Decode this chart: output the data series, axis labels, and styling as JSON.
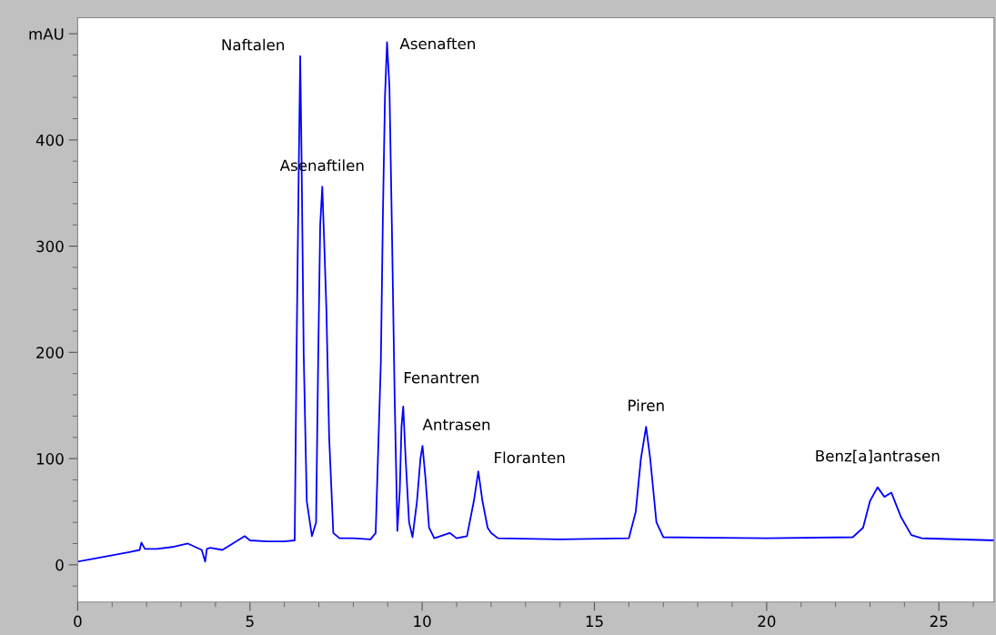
{
  "chart_data": {
    "type": "line",
    "x": [
      0,
      0.5,
      1,
      1.5,
      1.8,
      1.85,
      1.95,
      2.3,
      2.8,
      3.2,
      3.6,
      3.7,
      3.75,
      3.85,
      4.2,
      4.5,
      4.85,
      5.0,
      5.5,
      6.0,
      6.3,
      6.35,
      6.42,
      6.46,
      6.5,
      6.56,
      6.65,
      6.8,
      6.92,
      6.98,
      7.04,
      7.1,
      7.16,
      7.22,
      7.3,
      7.42,
      7.6,
      8.0,
      8.5,
      8.65,
      8.8,
      8.86,
      8.92,
      8.98,
      9.05,
      9.12,
      9.2,
      9.28,
      9.35,
      9.4,
      9.45,
      9.52,
      9.62,
      9.72,
      9.85,
      9.95,
      10.01,
      10.1,
      10.2,
      10.35,
      10.8,
      11.0,
      11.3,
      11.5,
      11.63,
      11.75,
      11.9,
      12.0,
      12.2,
      14.0,
      16.0,
      16.2,
      16.35,
      16.5,
      16.62,
      16.8,
      17.0,
      20.0,
      22.5,
      22.8,
      23.0,
      23.22,
      23.42,
      23.62,
      23.9,
      24.2,
      24.5,
      26.6
    ],
    "series": [
      {
        "color": "#0000ff",
        "values": [
          3,
          6,
          9,
          12,
          14,
          21,
          15,
          15,
          17,
          20,
          14,
          3,
          15,
          16,
          14,
          20,
          27,
          23,
          22,
          22,
          23,
          190,
          380,
          479,
          380,
          200,
          60,
          27,
          40,
          190,
          320,
          356,
          300,
          240,
          120,
          30,
          25,
          25,
          24,
          30,
          190,
          329,
          440,
          492,
          450,
          320,
          160,
          32,
          70,
          130,
          149,
          100,
          40,
          26,
          60,
          100,
          112,
          80,
          35,
          25,
          30,
          25,
          27,
          60,
          88,
          60,
          35,
          30,
          25,
          24,
          25,
          50,
          100,
          130,
          100,
          40,
          26,
          25,
          26,
          35,
          60,
          73,
          64,
          68,
          45,
          28,
          25,
          23
        ]
      }
    ],
    "xlim": [
      0,
      26.6
    ],
    "ylim": [
      -35,
      515
    ],
    "xticks": [
      0,
      5,
      10,
      15,
      20,
      25
    ],
    "yticks": [
      0,
      100,
      200,
      300,
      400,
      {
        "value": 500,
        "label": "mAU"
      }
    ],
    "grid": false,
    "marker": "none",
    "line_style": "solid",
    "annotations": [
      {
        "text": "Naftalen",
        "x": 6.46,
        "y": 479
      },
      {
        "text": "Asenaftilen",
        "x": 7.1,
        "y": 356
      },
      {
        "text": "Asenaften",
        "x": 8.98,
        "y": 492
      },
      {
        "text": "Fenantren",
        "x": 9.45,
        "y": 149
      },
      {
        "text": "Antrasen",
        "x": 10.01,
        "y": 112
      },
      {
        "text": "Floranten",
        "x": 11.63,
        "y": 88
      },
      {
        "text": "Piren",
        "x": 16.5,
        "y": 130
      },
      {
        "text": "Benz[a]antrasen",
        "x": 23.22,
        "y": 73
      }
    ]
  }
}
